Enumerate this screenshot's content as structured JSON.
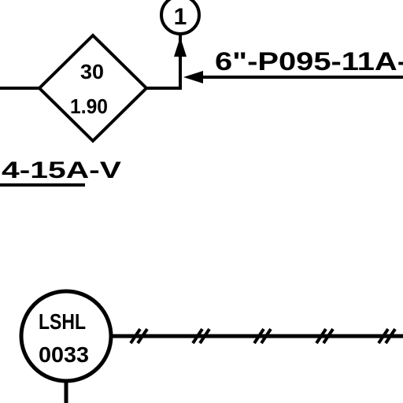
{
  "drawing": {
    "offpage_connector": {
      "number": "1"
    },
    "line_number": "6\"-P095-11A-",
    "diamond": {
      "top_value": "30",
      "bottom_value": "1.90"
    },
    "line_spec": {
      "underlined_part": "4-15A",
      "suffix": "-V"
    },
    "instrument": {
      "line1": "LSHL",
      "line2": "0033"
    },
    "colors": {
      "ink": "#000000",
      "background": "#ffffff"
    }
  }
}
